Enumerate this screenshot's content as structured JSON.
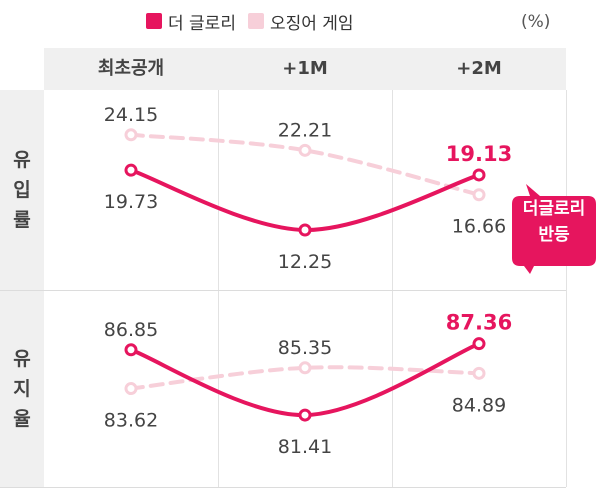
{
  "legend": {
    "items": [
      {
        "label": "더 글로리",
        "color": "#e6155e"
      },
      {
        "label": "오징어 게임",
        "color": "#f7cfd9"
      }
    ]
  },
  "unit": "(%)",
  "columns": [
    "최초공개",
    "+1M",
    "+2M"
  ],
  "rows": [
    {
      "label": [
        "유",
        "입",
        "률"
      ]
    },
    {
      "label": [
        "유",
        "지",
        "율"
      ]
    }
  ],
  "callout": {
    "lines": [
      "더글로리",
      "반등"
    ]
  },
  "colors": {
    "primary": "#e6155e",
    "secondary": "#f7cfd9",
    "header_bg": "#f0f0f0",
    "callout": "#e6155e"
  },
  "chart_data": [
    {
      "type": "line",
      "ylabel": "유입률",
      "categories": [
        "최초공개",
        "+1M",
        "+2M"
      ],
      "series": [
        {
          "name": "더 글로리",
          "values": [
            19.73,
            12.25,
            19.13
          ],
          "labels": [
            "19.73",
            "12.25",
            "19.13"
          ]
        },
        {
          "name": "오징어 게임",
          "values": [
            24.15,
            22.21,
            16.66
          ],
          "labels": [
            "24.15",
            "22.21",
            "16.66"
          ]
        }
      ]
    },
    {
      "type": "line",
      "ylabel": "유지율",
      "categories": [
        "최초공개",
        "+1M",
        "+2M"
      ],
      "series": [
        {
          "name": "더 글로리",
          "values": [
            86.85,
            81.41,
            87.36
          ],
          "labels": [
            "86.85",
            "81.41",
            "87.36"
          ]
        },
        {
          "name": "오징어 게임",
          "values": [
            83.62,
            85.35,
            84.89
          ],
          "labels": [
            "83.62",
            "85.35",
            "84.89"
          ]
        }
      ]
    }
  ]
}
